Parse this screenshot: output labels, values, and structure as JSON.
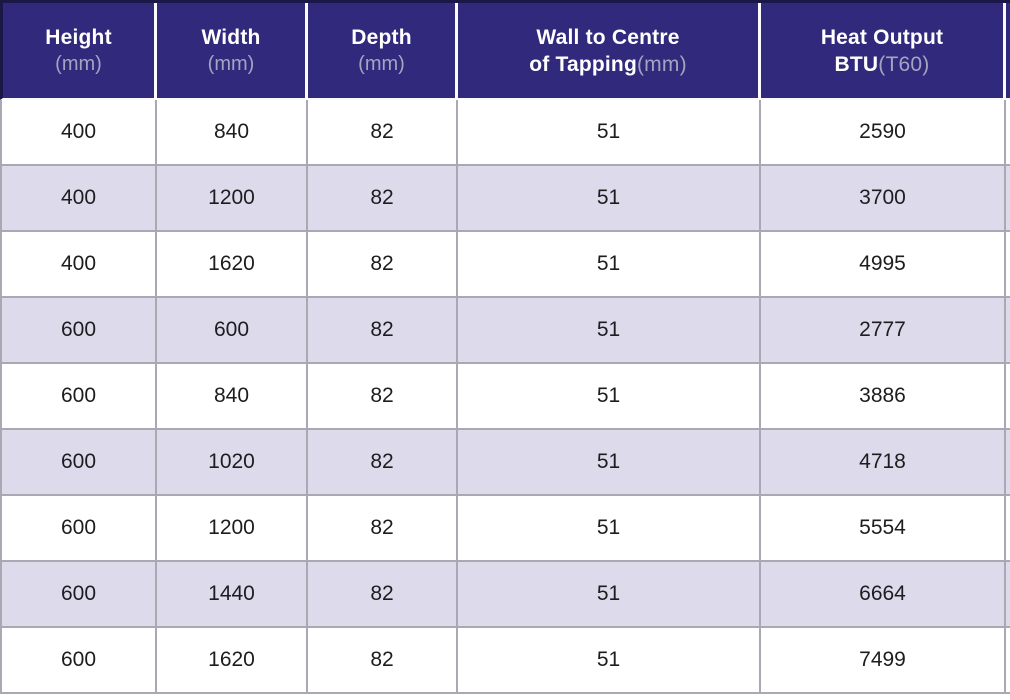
{
  "meta": {
    "description": "Radiator dimensions and heat output specification table"
  },
  "colors": {
    "header_background": "#312a7c",
    "header_title_text": "#ffffff",
    "header_subtitle_text": "#a6a3c1",
    "header_outer_border": "#1b1747",
    "row_white": "#ffffff",
    "row_lavender": "#dcdaeb",
    "cell_border": "#a9a8b3",
    "cell_text": "#1d1d1f"
  },
  "table": {
    "headers": [
      {
        "title": "Height",
        "subtitle": "(mm)"
      },
      {
        "title": "Width",
        "subtitle": "(mm)"
      },
      {
        "title": "Depth",
        "subtitle": "(mm)"
      },
      {
        "title_line1": "Wall to Centre",
        "title_line2_bold": "of Tapping",
        "title_line2_light": "(mm)"
      },
      {
        "title_line1": "Heat Output",
        "title_line2_bold": "BTU",
        "title_line2_light": "(T60)"
      }
    ],
    "rows": [
      [
        "400",
        "840",
        "82",
        "51",
        "2590"
      ],
      [
        "400",
        "1200",
        "82",
        "51",
        "3700"
      ],
      [
        "400",
        "1620",
        "82",
        "51",
        "4995"
      ],
      [
        "600",
        "600",
        "82",
        "51",
        "2777"
      ],
      [
        "600",
        "840",
        "82",
        "51",
        "3886"
      ],
      [
        "600",
        "1020",
        "82",
        "51",
        "4718"
      ],
      [
        "600",
        "1200",
        "82",
        "51",
        "5554"
      ],
      [
        "600",
        "1440",
        "82",
        "51",
        "6664"
      ],
      [
        "600",
        "1620",
        "82",
        "51",
        "7499"
      ]
    ]
  }
}
